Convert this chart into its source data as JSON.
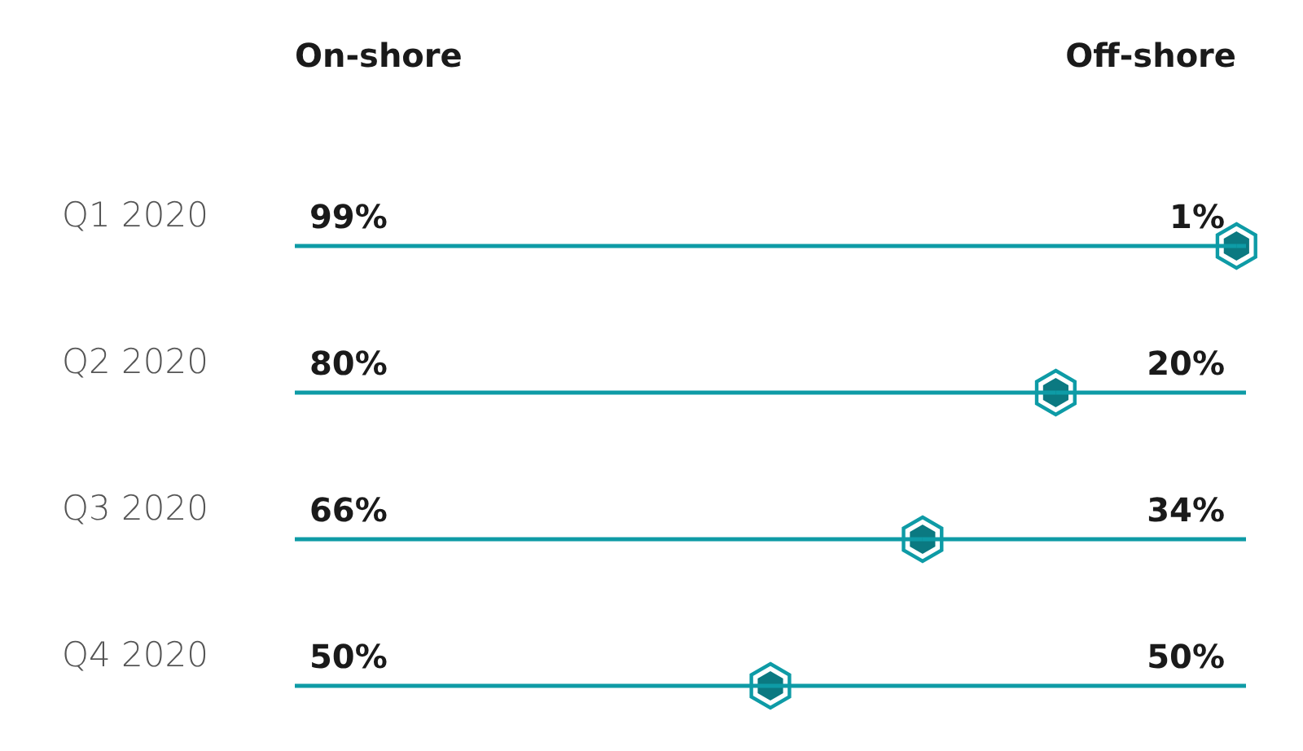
{
  "chart_data": {
    "type": "bar",
    "orientation": "horizontal",
    "stacked": true,
    "categories": [
      "Q1 2020",
      "Q2 2020",
      "Q3 2020",
      "Q4 2020"
    ],
    "series": [
      {
        "color": "#0e9ba6",
        "values": [
          99,
          80,
          66,
          50
        ],
        "value_labels": [
          "99%",
          "80%",
          "66%",
          "50%"
        ]
      },
      {
        "color": "#0e9ba6",
        "values": [
          1,
          20,
          34,
          50
        ],
        "value_labels": [
          "1%",
          "20%",
          "34%",
          "50%"
        ]
      }
    ],
    "tick_labels": "y",
    "annotations": [
      "On-shore",
      "Off-shore"
    ]
  }
}
